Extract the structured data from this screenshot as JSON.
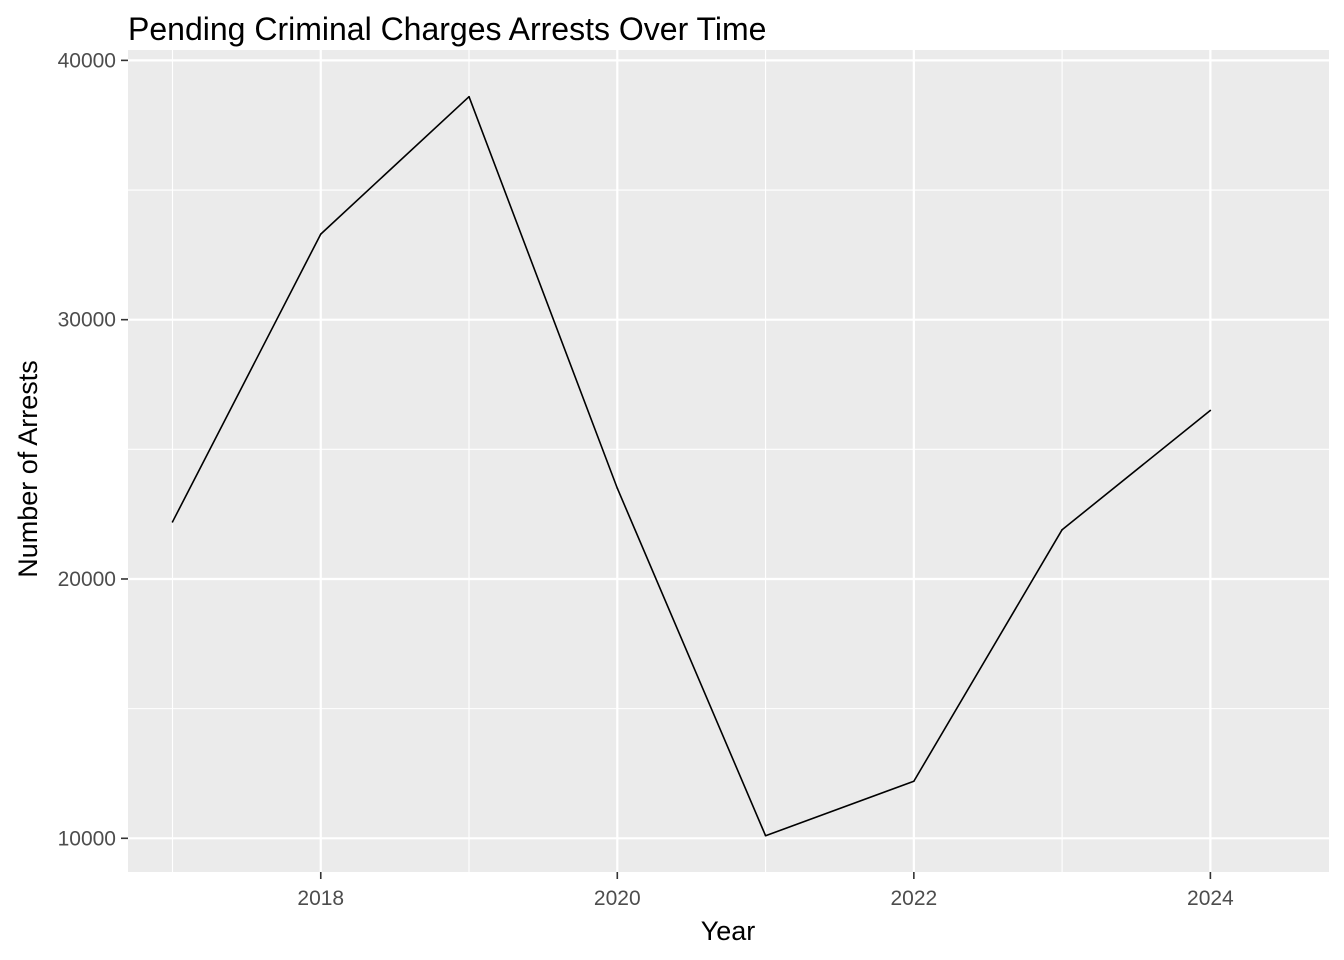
{
  "chart_data": {
    "type": "line",
    "title": "Pending Criminal Charges Arrests Over Time",
    "xlabel": "Year",
    "ylabel": "Number of Arrests",
    "x": [
      2017,
      2018,
      2019,
      2020,
      2021,
      2022,
      2023,
      2024
    ],
    "series": [
      {
        "values": [
          22200,
          33300,
          38600,
          23500,
          10100,
          12200,
          21900,
          26500
        ]
      }
    ],
    "xlim": [
      2016.7,
      2024.8
    ],
    "ylim": [
      8700,
      40400
    ],
    "x_major_ticks": [
      2018,
      2020,
      2022,
      2024
    ],
    "x_minor_ticks": [
      2017,
      2019,
      2021,
      2023
    ],
    "y_major_ticks": [
      10000,
      20000,
      30000,
      40000
    ],
    "y_minor_ticks": [
      15000,
      25000,
      35000
    ],
    "x_tick_labels": [
      "2018",
      "2020",
      "2022",
      "2024"
    ],
    "y_tick_labels": [
      "10000",
      "20000",
      "30000",
      "40000"
    ],
    "grid": true,
    "legend": "none",
    "colors": {
      "panel": "#ebebeb",
      "grid": "#ffffff",
      "line": "#000000",
      "tick_text": "#4d4d4d",
      "tick_mark": "#333333"
    }
  }
}
